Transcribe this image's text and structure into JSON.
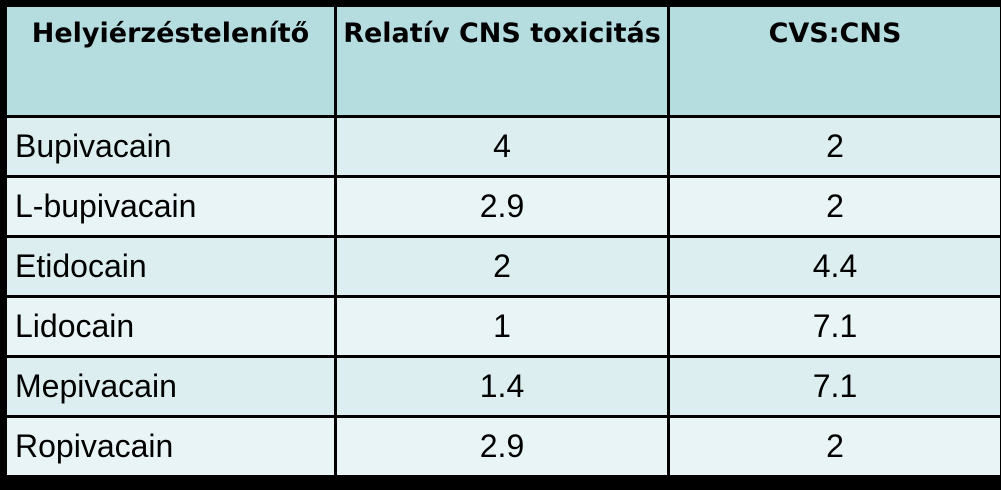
{
  "table": {
    "headers": [
      "Helyiérzéstelenítő",
      "Relatív CNS toxicitás",
      "CVS:CNS"
    ],
    "rows": [
      [
        "Bupivacain",
        "4",
        "2"
      ],
      [
        "L-bupivacain",
        "2.9",
        "2"
      ],
      [
        "Etidocain",
        "2",
        "4.4"
      ],
      [
        "Lidocain",
        "1",
        "7.1"
      ],
      [
        "Mepivacain",
        "1.4",
        "7.1"
      ],
      [
        "Ropivacain",
        "2.9",
        "2"
      ]
    ]
  },
  "colors": {
    "header_bg": "#b5dde0",
    "row_bg": "#dceef0",
    "border": "#000000"
  }
}
